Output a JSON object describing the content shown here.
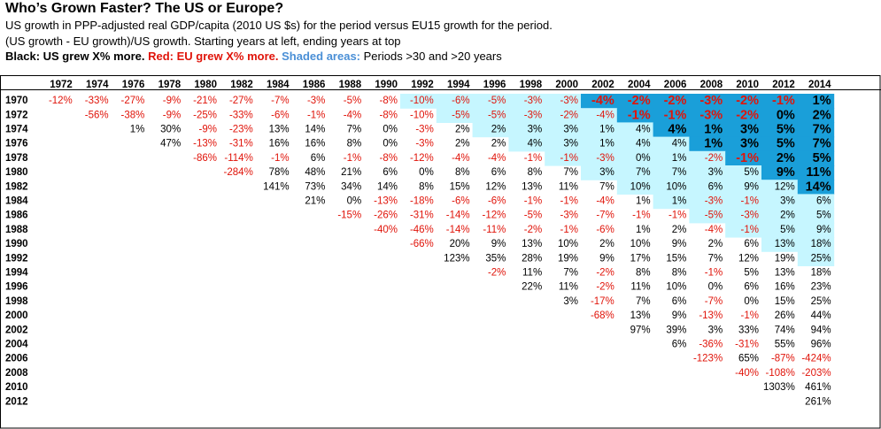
{
  "header": {
    "title": "Who’s Grown Faster? The US or Europe?",
    "subtitle_1": "US growth in PPP-adjusted real GDP/capita (2010 US $s) for the period versus EU15 growth for the period.",
    "subtitle_2": "(US growth - EU growth)/US growth. Starting years at left, ending years at top",
    "legend_black": "Black: US grew X% more.",
    "legend_red": "Red: EU grew X% more.",
    "legend_shaded": "Shaded areas:",
    "legend_periods": "Periods >30 and >20 years"
  },
  "colors": {
    "positive_text": "#000000",
    "negative_text": "#e0140a",
    "shade_over_30_years": "#1a9fd9",
    "shade_over_20_years": "#c6f6ff"
  },
  "chart_data": {
    "type": "table",
    "unit": "%",
    "shading_rule": "dark blue when period > 30 years, light cyan when period > 20 years",
    "end_years": [
      "1972",
      "1974",
      "1976",
      "1978",
      "1980",
      "1982",
      "1984",
      "1986",
      "1988",
      "1990",
      "1992",
      "1994",
      "1996",
      "1998",
      "2000",
      "2002",
      "2004",
      "2006",
      "2008",
      "2010",
      "2012",
      "2014"
    ],
    "rows": [
      {
        "start": "1970",
        "values": [
          -12,
          -33,
          -27,
          -9,
          -21,
          -27,
          -7,
          -3,
          -5,
          -8,
          -10,
          -6,
          -5,
          -3,
          -3,
          -4,
          -2,
          -2,
          -3,
          -2,
          -1,
          1
        ]
      },
      {
        "start": "1972",
        "values": [
          null,
          -56,
          -38,
          -9,
          -25,
          -33,
          -6,
          -1,
          -4,
          -8,
          -10,
          -5,
          -5,
          -3,
          -2,
          -4,
          -1,
          -1,
          -3,
          -2,
          0,
          2
        ]
      },
      {
        "start": "1974",
        "values": [
          null,
          null,
          1,
          30,
          -9,
          -23,
          13,
          14,
          7,
          0,
          -3,
          2,
          2,
          3,
          3,
          1,
          4,
          4,
          1,
          3,
          5,
          7
        ]
      },
      {
        "start": "1976",
        "values": [
          null,
          null,
          null,
          47,
          -13,
          -31,
          16,
          16,
          8,
          0,
          -3,
          2,
          2,
          4,
          3,
          1,
          4,
          4,
          1,
          3,
          5,
          7
        ]
      },
      {
        "start": "1978",
        "values": [
          null,
          null,
          null,
          null,
          -86,
          -114,
          -1,
          6,
          -1,
          -8,
          -12,
          -4,
          -4,
          -1,
          -1,
          -3,
          0,
          1,
          -2,
          -1,
          2,
          5
        ]
      },
      {
        "start": "1980",
        "values": [
          null,
          null,
          null,
          null,
          null,
          -284,
          78,
          48,
          21,
          6,
          0,
          8,
          6,
          8,
          7,
          3,
          7,
          7,
          3,
          5,
          9,
          11
        ]
      },
      {
        "start": "1982",
        "values": [
          null,
          null,
          null,
          null,
          null,
          null,
          141,
          73,
          34,
          14,
          8,
          15,
          12,
          13,
          11,
          7,
          10,
          10,
          6,
          9,
          12,
          14
        ]
      },
      {
        "start": "1984",
        "values": [
          null,
          null,
          null,
          null,
          null,
          null,
          null,
          21,
          0,
          -13,
          -18,
          -6,
          -6,
          -1,
          -1,
          -4,
          1,
          1,
          -3,
          -1,
          3,
          6
        ]
      },
      {
        "start": "1986",
        "values": [
          null,
          null,
          null,
          null,
          null,
          null,
          null,
          null,
          -15,
          -26,
          -31,
          -14,
          -12,
          -5,
          -3,
          -7,
          -1,
          -1,
          -5,
          -3,
          2,
          5
        ]
      },
      {
        "start": "1988",
        "values": [
          null,
          null,
          null,
          null,
          null,
          null,
          null,
          null,
          null,
          -40,
          -46,
          -14,
          -11,
          -2,
          -1,
          -6,
          1,
          2,
          -4,
          -1,
          5,
          9
        ]
      },
      {
        "start": "1990",
        "values": [
          null,
          null,
          null,
          null,
          null,
          null,
          null,
          null,
          null,
          null,
          -66,
          20,
          9,
          13,
          10,
          2,
          10,
          9,
          2,
          6,
          13,
          18
        ]
      },
      {
        "start": "1992",
        "values": [
          null,
          null,
          null,
          null,
          null,
          null,
          null,
          null,
          null,
          null,
          null,
          123,
          35,
          28,
          19,
          9,
          17,
          15,
          7,
          12,
          19,
          25
        ]
      },
      {
        "start": "1994",
        "values": [
          null,
          null,
          null,
          null,
          null,
          null,
          null,
          null,
          null,
          null,
          null,
          null,
          -2,
          11,
          7,
          -2,
          8,
          8,
          -1,
          5,
          13,
          18
        ]
      },
      {
        "start": "1996",
        "values": [
          null,
          null,
          null,
          null,
          null,
          null,
          null,
          null,
          null,
          null,
          null,
          null,
          null,
          22,
          11,
          -2,
          11,
          10,
          0,
          6,
          16,
          23
        ]
      },
      {
        "start": "1998",
        "values": [
          null,
          null,
          null,
          null,
          null,
          null,
          null,
          null,
          null,
          null,
          null,
          null,
          null,
          null,
          3,
          -17,
          7,
          6,
          -7,
          0,
          15,
          25
        ]
      },
      {
        "start": "2000",
        "values": [
          null,
          null,
          null,
          null,
          null,
          null,
          null,
          null,
          null,
          null,
          null,
          null,
          null,
          null,
          null,
          -68,
          13,
          9,
          -13,
          -1,
          26,
          44
        ]
      },
      {
        "start": "2002",
        "values": [
          null,
          null,
          null,
          null,
          null,
          null,
          null,
          null,
          null,
          null,
          null,
          null,
          null,
          null,
          null,
          null,
          97,
          39,
          3,
          33,
          74,
          94
        ]
      },
      {
        "start": "2004",
        "values": [
          null,
          null,
          null,
          null,
          null,
          null,
          null,
          null,
          null,
          null,
          null,
          null,
          null,
          null,
          null,
          null,
          null,
          6,
          -36,
          -31,
          55,
          96
        ]
      },
      {
        "start": "2006",
        "values": [
          null,
          null,
          null,
          null,
          null,
          null,
          null,
          null,
          null,
          null,
          null,
          null,
          null,
          null,
          null,
          null,
          null,
          null,
          -123,
          65,
          -87,
          -424
        ]
      },
      {
        "start": "2008",
        "values": [
          null,
          null,
          null,
          null,
          null,
          null,
          null,
          null,
          null,
          null,
          null,
          null,
          null,
          null,
          null,
          null,
          null,
          null,
          null,
          -40,
          -108,
          -203
        ]
      },
      {
        "start": "2010",
        "values": [
          null,
          null,
          null,
          null,
          null,
          null,
          null,
          null,
          null,
          null,
          null,
          null,
          null,
          null,
          null,
          null,
          null,
          null,
          null,
          null,
          1303,
          461
        ]
      },
      {
        "start": "2012",
        "values": [
          null,
          null,
          null,
          null,
          null,
          null,
          null,
          null,
          null,
          null,
          null,
          null,
          null,
          null,
          null,
          null,
          null,
          null,
          null,
          null,
          null,
          261
        ]
      }
    ]
  }
}
